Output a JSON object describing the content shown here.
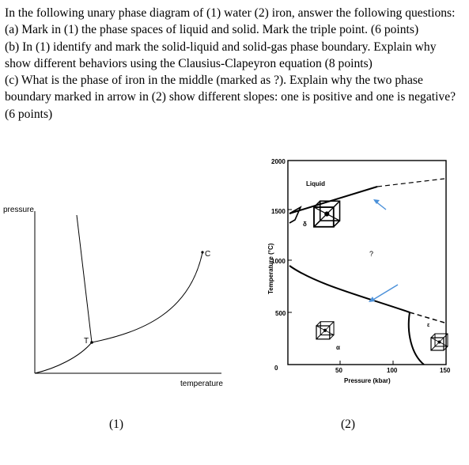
{
  "question": {
    "intro": "In the following unary phase diagram of (1) water (2) iron, answer the following questions:",
    "part_a": "(a) Mark in (1) the phase spaces of liquid and solid. Mark the triple point. (6 points)",
    "part_b": "(b) In (1) identify and mark the solid-liquid and solid-gas phase boundary. Explain why show different behaviors using the Clausius-Clapeyron equation (8 points)",
    "part_c": "(c) What is the phase of iron in the middle (marked as ?). Explain why the two phase boundary marked in arrow in (2) show different slopes: one is positive and one is negative? (6 points)"
  },
  "diagram1": {
    "y_axis_label": "pressure",
    "x_axis_label": "temperature",
    "triple_point_label": "T",
    "critical_point_label": "C",
    "caption": "(1)"
  },
  "diagram2": {
    "y_axis_label": "Temperature (°C)",
    "x_axis_label": "Pressure (kbar)",
    "y_ticks": [
      "2000",
      "1500",
      "1000",
      "500",
      "0"
    ],
    "x_ticks": [
      "50",
      "100",
      "150"
    ],
    "liquid_label": "Liquid",
    "unknown_label": "?",
    "delta_label": "δ",
    "alpha_label": "α",
    "epsilon_label": "ε",
    "caption": "(2)"
  },
  "colors": {
    "arrow": "#4a90d9",
    "text": "#000000"
  }
}
